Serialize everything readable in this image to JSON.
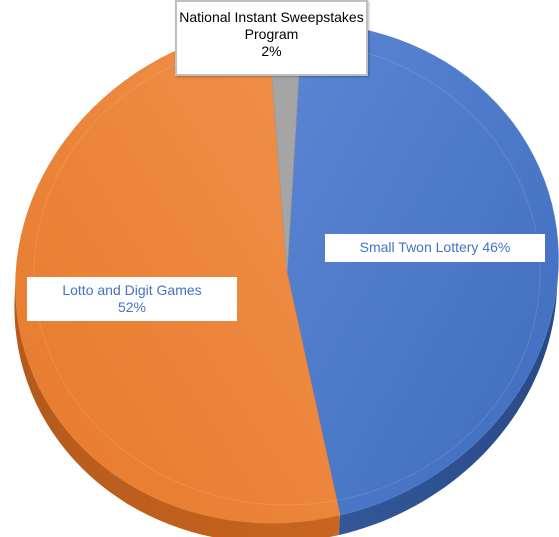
{
  "chart_data": {
    "type": "pie",
    "title": "",
    "labels": [
      "Small Twon Lottery",
      "Lotto and Digit Games",
      "National Instant Sweepstakes Program"
    ],
    "values": [
      46,
      52,
      2
    ],
    "value_labels": [
      "46%",
      "52%",
      "2%"
    ],
    "colors": [
      "#4472c4",
      "#ed7d31",
      "#a5a5a5"
    ],
    "style": "3d",
    "legend": "none"
  }
}
